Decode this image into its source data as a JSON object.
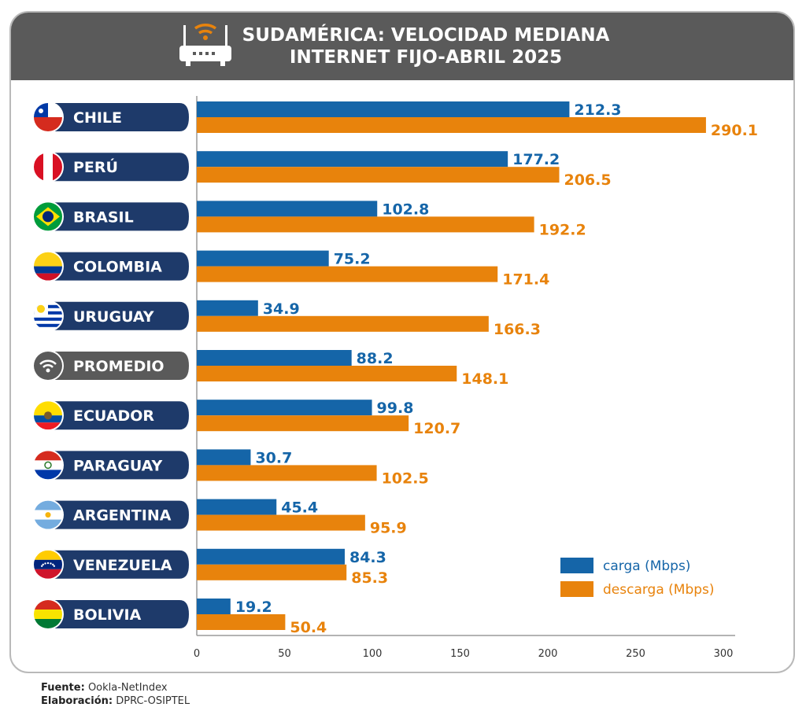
{
  "title_line1": "SUDAMÉRICA: VELOCIDAD MEDIANA",
  "title_line2": "INTERNET FIJO-ABRIL 2025",
  "footer": {
    "source_label": "Fuente:",
    "source_value": "Ookla-NetIndex",
    "made_label": "Elaboración:",
    "made_value": "DPRC-OSIPTEL"
  },
  "colors": {
    "carga": "#1565a8",
    "descarga": "#e8830c",
    "label_box": "#1e3a6a",
    "average_box": "#5a5a5a",
    "header": "#5a5a5a"
  },
  "chart_data": {
    "type": "bar",
    "orientation": "horizontal",
    "categories": [
      "CHILE",
      "PERÚ",
      "BRASIL",
      "COLOMBIA",
      "URUGUAY",
      "PROMEDIO",
      "ECUADOR",
      "PARAGUAY",
      "ARGENTINA",
      "VENEZUELA",
      "BOLIVIA"
    ],
    "series": [
      {
        "name": "carga (Mbps)",
        "values": [
          212.3,
          177.2,
          102.8,
          75.2,
          34.9,
          88.2,
          99.8,
          30.7,
          45.4,
          84.3,
          19.2
        ]
      },
      {
        "name": "descarga (Mbps)",
        "values": [
          290.1,
          206.5,
          192.2,
          171.4,
          166.3,
          148.1,
          120.7,
          102.5,
          95.9,
          85.3,
          50.4
        ]
      }
    ],
    "value_labels": {
      "carga": [
        "212.3",
        "177.2",
        "102.8",
        "75.2",
        "34.9",
        "88.2",
        "99.8",
        "30.7",
        "45.4",
        "84.3",
        "19.2"
      ],
      "descarga": [
        "290.1",
        "206.5",
        "192.2",
        "171.4",
        "166.3",
        "148.1",
        "120.7",
        "102.5",
        "95.9",
        "85.3",
        "50.4"
      ]
    },
    "xticks": [
      "0",
      "50",
      "100",
      "150",
      "200",
      "250",
      "300"
    ],
    "xlim": [
      0,
      300
    ],
    "legend": [
      "carga (Mbps)",
      "descarga (Mbps)"
    ],
    "legend_position": "bottom-right",
    "flag_icons": [
      "chile-flag-icon",
      "peru-flag-icon",
      "brazil-flag-icon",
      "colombia-flag-icon",
      "uruguay-flag-icon",
      "wifi-icon",
      "ecuador-flag-icon",
      "paraguay-flag-icon",
      "argentina-flag-icon",
      "venezuela-flag-icon",
      "bolivia-flag-icon"
    ],
    "grid": false
  }
}
